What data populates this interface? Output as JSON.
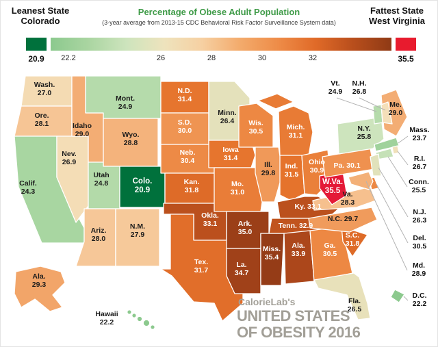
{
  "header": {
    "leanest_label": "Leanest State",
    "leanest_state": "Colorado",
    "title": "Percentage of Obese Adult Population",
    "subtitle": "(3-year average from 2013-15 CDC Behavioral Risk Factor Surveillance System data)",
    "fattest_label": "Fattest State",
    "fattest_state": "West Virginia"
  },
  "legend": {
    "min_label": "20.9",
    "max_label": "35.5",
    "tick_labels": [
      "22.2",
      "26",
      "28",
      "30",
      "32"
    ],
    "min_color": "#00713c",
    "max_color": "#e81b2e",
    "gradient_colors": [
      "#8cc98e",
      "#aad5a1",
      "#cde4bd",
      "#eee3bd",
      "#f6d0a2",
      "#f3ab6c",
      "#ee8c48",
      "#e06a28",
      "#b84e1c",
      "#8f3a15"
    ]
  },
  "footer": {
    "brand": "CalorieLab's",
    "line1": "UNITED STATES",
    "line2": "OF OBESITY 2016"
  },
  "chart_data": {
    "type": "choropleth",
    "title": "Percentage of Obese Adult Population",
    "subtitle": "(3-year average from 2013-15 CDC Behavioral Risk Factor Surveillance System data)",
    "value_unit": "percent obese adults",
    "value_range": [
      20.9,
      35.5
    ],
    "leanest": {
      "state": "Colorado",
      "value": 20.9
    },
    "fattest": {
      "state": "West Virginia",
      "value": 35.5
    },
    "color_anchors": [
      [
        20.9,
        "#00713c"
      ],
      [
        22.2,
        "#8cc98e"
      ],
      [
        24.5,
        "#abd7a3"
      ],
      [
        25.8,
        "#cde4bd"
      ],
      [
        26.8,
        "#f4dfb9"
      ],
      [
        28.2,
        "#f6c392"
      ],
      [
        29.3,
        "#f2a569"
      ],
      [
        30.3,
        "#ee8c48"
      ],
      [
        31.5,
        "#e5732c"
      ],
      [
        32.3,
        "#d35f22"
      ],
      [
        33.3,
        "#b54c1c"
      ],
      [
        35.4,
        "#953c17"
      ],
      [
        35.5,
        "#e41937"
      ]
    ],
    "states": [
      {
        "id": "WA",
        "name": "Wash.",
        "value": "27.0"
      },
      {
        "id": "OR",
        "name": "Ore.",
        "value": "28.1"
      },
      {
        "id": "CA",
        "name": "Calif.",
        "value": "24.3"
      },
      {
        "id": "NV",
        "name": "Nev.",
        "value": "26.9"
      },
      {
        "id": "ID",
        "name": "Idaho",
        "value": "29.0"
      },
      {
        "id": "MT",
        "name": "Mont.",
        "value": "24.9"
      },
      {
        "id": "WY",
        "name": "Wyo.",
        "value": "28.8"
      },
      {
        "id": "UT",
        "name": "Utah",
        "value": "24.8"
      },
      {
        "id": "CO",
        "name": "Colo.",
        "value": "20.9"
      },
      {
        "id": "AZ",
        "name": "Ariz.",
        "value": "28.0"
      },
      {
        "id": "NM",
        "name": "N.M.",
        "value": "27.9"
      },
      {
        "id": "ND",
        "name": "N.D.",
        "value": "31.4"
      },
      {
        "id": "SD",
        "name": "S.D.",
        "value": "30.0"
      },
      {
        "id": "NE",
        "name": "Neb.",
        "value": "30.4"
      },
      {
        "id": "KS",
        "name": "Kan.",
        "value": "31.8"
      },
      {
        "id": "OK",
        "name": "Okla.",
        "value": "33.1"
      },
      {
        "id": "TX",
        "name": "Tex.",
        "value": "31.7"
      },
      {
        "id": "MN",
        "name": "Minn.",
        "value": "26.4"
      },
      {
        "id": "IA",
        "name": "Iowa",
        "value": "31.4"
      },
      {
        "id": "MO",
        "name": "Mo.",
        "value": "31.0"
      },
      {
        "id": "AR",
        "name": "Ark.",
        "value": "35.0"
      },
      {
        "id": "LA",
        "name": "La.",
        "value": "34.7"
      },
      {
        "id": "WI",
        "name": "Wis.",
        "value": "30.5"
      },
      {
        "id": "IL",
        "name": "Ill.",
        "value": "29.8"
      },
      {
        "id": "MS",
        "name": "Miss.",
        "value": "35.4"
      },
      {
        "id": "MI",
        "name": "Mich.",
        "value": "31.1"
      },
      {
        "id": "IN",
        "name": "Ind.",
        "value": "31.5"
      },
      {
        "id": "OH",
        "name": "Ohio",
        "value": "30.9"
      },
      {
        "id": "KY",
        "name": "Ky.",
        "value": "33.1"
      },
      {
        "id": "TN",
        "name": "Tenn.",
        "value": "32.9"
      },
      {
        "id": "AL",
        "name": "Ala.",
        "value": "33.9"
      },
      {
        "id": "GA",
        "name": "Ga.",
        "value": "30.5"
      },
      {
        "id": "FL",
        "name": "Fla.",
        "value": "26.5"
      },
      {
        "id": "SC",
        "name": "S.C.",
        "value": "31.8"
      },
      {
        "id": "NC",
        "name": "N.C.",
        "value": "29.7"
      },
      {
        "id": "VA",
        "name": "Va.",
        "value": "28.3"
      },
      {
        "id": "WV",
        "name": "W.Va.",
        "value": "35.5"
      },
      {
        "id": "PA",
        "name": "Pa.",
        "value": "30.1"
      },
      {
        "id": "NY",
        "name": "N.Y.",
        "value": "25.8"
      },
      {
        "id": "ME",
        "name": "Me.",
        "value": "29.0"
      },
      {
        "id": "VT",
        "name": "Vt.",
        "value": "24.9"
      },
      {
        "id": "NH",
        "name": "N.H.",
        "value": "26.8"
      },
      {
        "id": "MA",
        "name": "Mass.",
        "value": "23.7"
      },
      {
        "id": "RI",
        "name": "R.I.",
        "value": "26.7"
      },
      {
        "id": "CT",
        "name": "Conn.",
        "value": "25.5"
      },
      {
        "id": "NJ",
        "name": "N.J.",
        "value": "26.3"
      },
      {
        "id": "DE",
        "name": "Del.",
        "value": "30.5"
      },
      {
        "id": "MD",
        "name": "Md.",
        "value": "28.9"
      },
      {
        "id": "DC",
        "name": "D.C.",
        "value": "22.2"
      },
      {
        "id": "AK",
        "name": "Ala.",
        "value": "29.3"
      },
      {
        "id": "HI",
        "name": "Hawaii",
        "value": "22.2"
      }
    ]
  }
}
